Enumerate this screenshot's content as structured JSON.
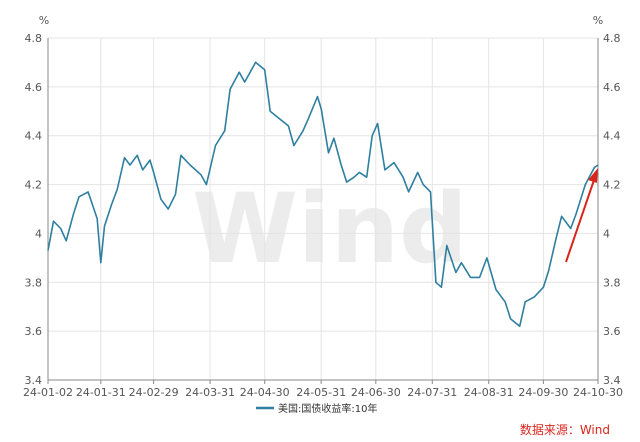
{
  "chart_data": {
    "type": "line",
    "title": "",
    "left_unit": "%",
    "right_unit": "%",
    "ylim": [
      3.4,
      4.8
    ],
    "y_ticks": [
      "4.8",
      "4.6",
      "4.4",
      "4.2",
      "4",
      "3.8",
      "3.6",
      "3.4"
    ],
    "x_ticks": [
      "24-01-02",
      "24-01-31",
      "24-02-29",
      "24-03-31",
      "24-04-30",
      "24-05-31",
      "24-06-30",
      "24-07-31",
      "24-08-31",
      "24-09-30",
      "24-10-30"
    ],
    "grid": true,
    "legend_position": "bottom",
    "series": [
      {
        "name": "美国:国债收益率:10年",
        "color": "#2e7fa0",
        "x": [
          "2024-01-02",
          "2024-01-05",
          "2024-01-09",
          "2024-01-12",
          "2024-01-16",
          "2024-01-19",
          "2024-01-24",
          "2024-01-29",
          "2024-01-31",
          "2024-02-02",
          "2024-02-06",
          "2024-02-09",
          "2024-02-13",
          "2024-02-16",
          "2024-02-20",
          "2024-02-23",
          "2024-02-27",
          "2024-02-29",
          "2024-03-04",
          "2024-03-08",
          "2024-03-12",
          "2024-03-15",
          "2024-03-20",
          "2024-03-26",
          "2024-03-29",
          "2024-04-03",
          "2024-04-08",
          "2024-04-11",
          "2024-04-16",
          "2024-04-19",
          "2024-04-25",
          "2024-04-30",
          "2024-05-03",
          "2024-05-08",
          "2024-05-13",
          "2024-05-16",
          "2024-05-21",
          "2024-05-24",
          "2024-05-29",
          "2024-05-31",
          "2024-06-04",
          "2024-06-07",
          "2024-06-11",
          "2024-06-14",
          "2024-06-18",
          "2024-06-21",
          "2024-06-25",
          "2024-06-28",
          "2024-07-01",
          "2024-07-05",
          "2024-07-10",
          "2024-07-15",
          "2024-07-18",
          "2024-07-23",
          "2024-07-26",
          "2024-07-30",
          "2024-08-02",
          "2024-08-05",
          "2024-08-08",
          "2024-08-13",
          "2024-08-16",
          "2024-08-21",
          "2024-08-26",
          "2024-08-30",
          "2024-09-04",
          "2024-09-09",
          "2024-09-12",
          "2024-09-17",
          "2024-09-20",
          "2024-09-25",
          "2024-09-30",
          "2024-10-03",
          "2024-10-07",
          "2024-10-10",
          "2024-10-15",
          "2024-10-18",
          "2024-10-23",
          "2024-10-28",
          "2024-10-30"
        ],
        "values": [
          3.93,
          4.05,
          4.02,
          3.97,
          4.08,
          4.15,
          4.17,
          4.06,
          3.88,
          4.03,
          4.12,
          4.18,
          4.31,
          4.28,
          4.32,
          4.26,
          4.3,
          4.25,
          4.14,
          4.1,
          4.16,
          4.32,
          4.28,
          4.24,
          4.2,
          4.36,
          4.42,
          4.59,
          4.66,
          4.62,
          4.7,
          4.67,
          4.5,
          4.47,
          4.44,
          4.36,
          4.42,
          4.47,
          4.56,
          4.51,
          4.33,
          4.39,
          4.28,
          4.21,
          4.23,
          4.25,
          4.23,
          4.4,
          4.45,
          4.26,
          4.29,
          4.23,
          4.17,
          4.25,
          4.2,
          4.17,
          3.8,
          3.78,
          3.95,
          3.84,
          3.88,
          3.82,
          3.82,
          3.9,
          3.77,
          3.72,
          3.65,
          3.62,
          3.72,
          3.74,
          3.78,
          3.85,
          3.98,
          4.07,
          4.02,
          4.08,
          4.2,
          4.27,
          4.28
        ]
      }
    ],
    "watermark": "Wind",
    "source": "数据来源：Wind",
    "annotation": "red arrow indicating upward trend"
  }
}
